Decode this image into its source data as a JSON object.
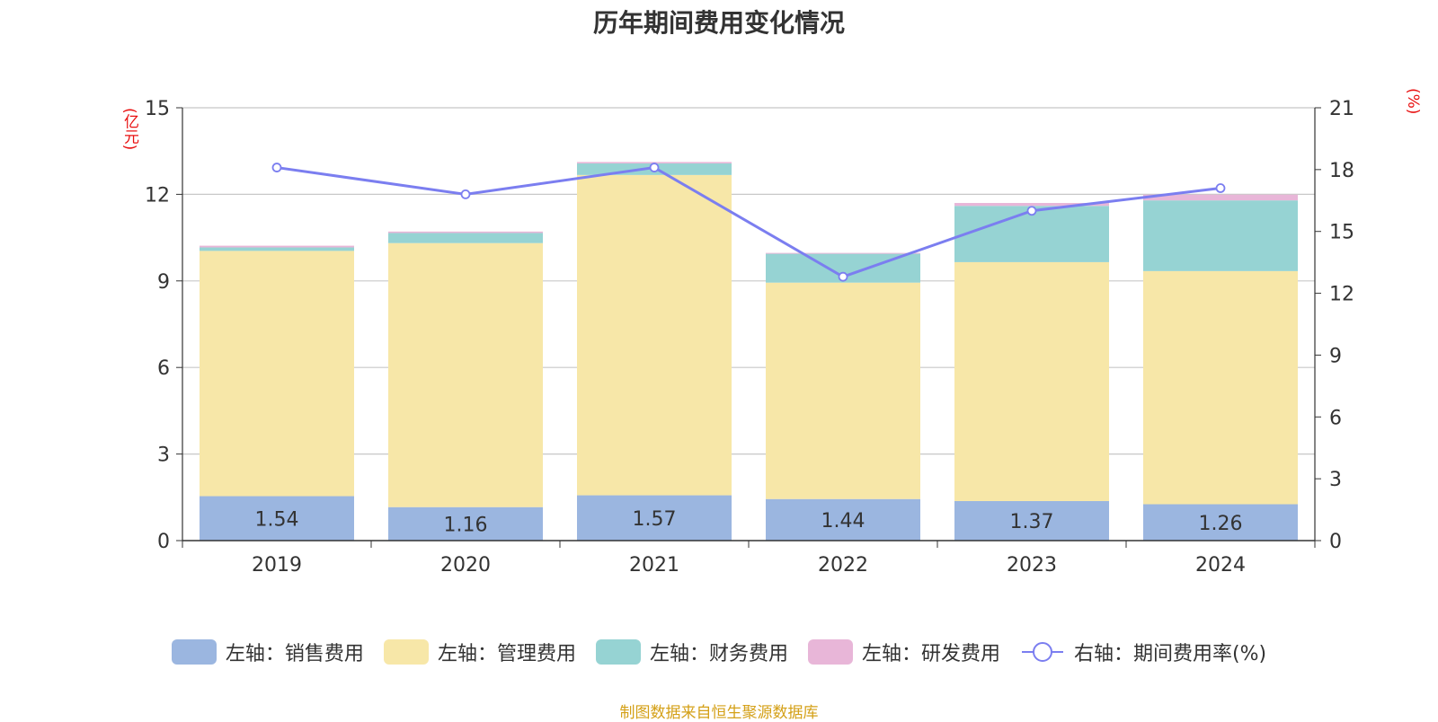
{
  "title": "历年期间费用变化情况",
  "left_unit": "(亿元)",
  "right_unit": "(%)",
  "source": "制图数据来自恒生聚源数据库",
  "chart_data": {
    "type": "bar",
    "stacked": true,
    "categories": [
      "2019",
      "2020",
      "2021",
      "2022",
      "2023",
      "2024"
    ],
    "y_left": {
      "ylim": [
        0,
        15
      ],
      "ticks": [
        "0",
        "3",
        "6",
        "9",
        "12",
        "15"
      ]
    },
    "y_right": {
      "ylim": [
        0,
        21
      ],
      "ticks": [
        "0",
        "3",
        "6",
        "9",
        "12",
        "15",
        "18",
        "21"
      ]
    },
    "grid": true,
    "legend_position": "bottom",
    "series": [
      {
        "name": "左轴：销售费用",
        "axis": "left",
        "type": "bar",
        "color": "#9bb6e0",
        "values": [
          1.54,
          1.16,
          1.57,
          1.44,
          1.37,
          1.26
        ],
        "labels": [
          "1.54",
          "1.16",
          "1.57",
          "1.44",
          "1.37",
          "1.26"
        ]
      },
      {
        "name": "左轴：管理费用",
        "axis": "left",
        "type": "bar",
        "color": "#f7e7a8",
        "values": [
          8.5,
          9.15,
          11.1,
          7.5,
          8.28,
          8.08
        ]
      },
      {
        "name": "左轴：财务费用",
        "axis": "left",
        "type": "bar",
        "color": "#96d3d3",
        "values": [
          0.12,
          0.35,
          0.4,
          1.0,
          1.95,
          2.45
        ]
      },
      {
        "name": "左轴：研发费用",
        "axis": "left",
        "type": "bar",
        "color": "#e8b6d8",
        "values": [
          0.06,
          0.05,
          0.05,
          0.03,
          0.1,
          0.2
        ]
      },
      {
        "name": "右轴：期间费用率(%)",
        "axis": "right",
        "type": "line",
        "color": "#7b7ef0",
        "values": [
          18.1,
          16.8,
          18.1,
          12.8,
          16.0,
          17.1
        ]
      }
    ]
  }
}
